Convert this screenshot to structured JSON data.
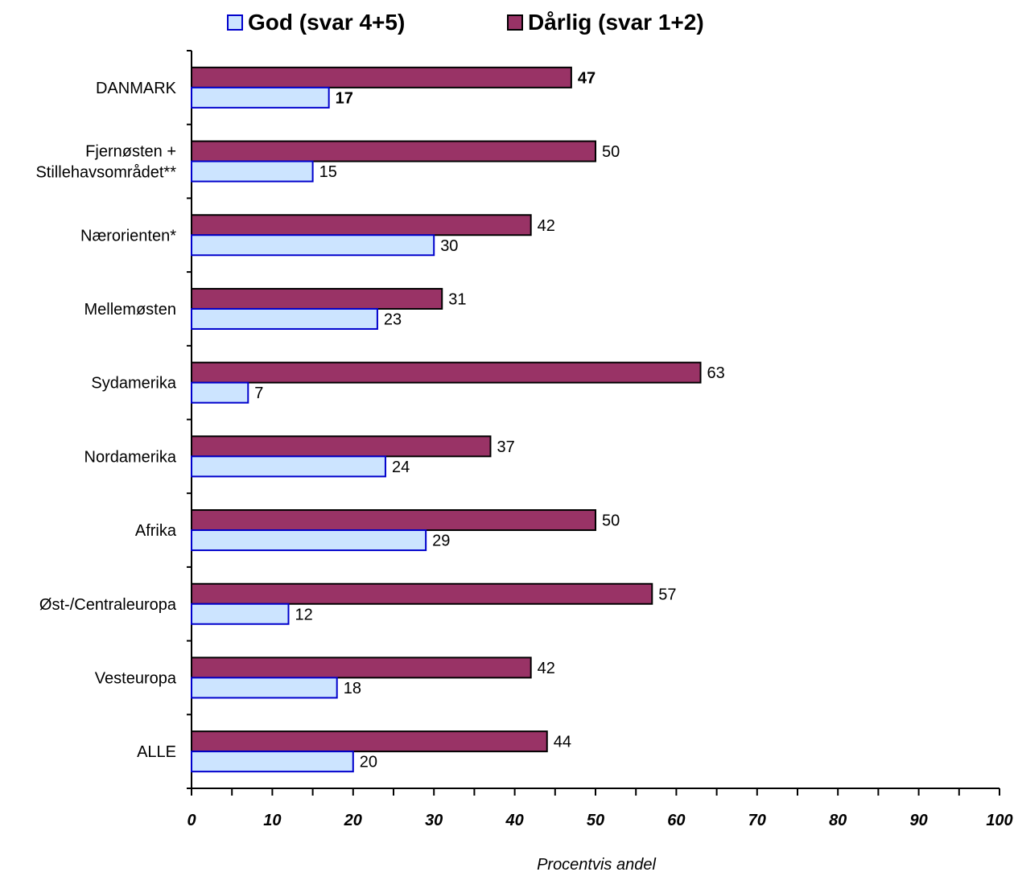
{
  "chart_data": {
    "type": "bar",
    "orientation": "horizontal",
    "categories": [
      "DANMARK",
      "Fjernøsten + Stillehavsområdet**",
      "Nærorienten*",
      "Mellemøsten",
      "Sydamerika",
      "Nordamerika",
      "Afrika",
      "Øst-/Centraleuropa",
      "Vesteuropa",
      "ALLE"
    ],
    "category_lines": [
      [
        "DANMARK"
      ],
      [
        "Fjernøsten +",
        "Stillehavsområdet**"
      ],
      [
        "Nærorienten*"
      ],
      [
        "Mellemøsten"
      ],
      [
        "Sydamerika"
      ],
      [
        "Nordamerika"
      ],
      [
        "Afrika"
      ],
      [
        "Øst-/Centraleuropa"
      ],
      [
        "Vesteuropa"
      ],
      [
        "ALLE"
      ]
    ],
    "series": [
      {
        "name": "Dårlig (svar 1+2)",
        "values": [
          47,
          50,
          42,
          31,
          63,
          37,
          50,
          57,
          42,
          44
        ],
        "color": "#993366",
        "edge": "#000000"
      },
      {
        "name": "God (svar 4+5)",
        "values": [
          17,
          15,
          30,
          23,
          7,
          24,
          29,
          12,
          18,
          20
        ],
        "color": "#cce4ff",
        "edge": "#0000cc"
      }
    ],
    "legend_order": [
      "God (svar 4+5)",
      "Dårlig (svar 1+2)"
    ],
    "legend_position": "top",
    "bold_category": "DANMARK",
    "xlim": [
      0,
      100
    ],
    "xticks": [
      0,
      10,
      20,
      30,
      40,
      50,
      60,
      70,
      80,
      90,
      100
    ],
    "xlabel": "Procentvis andel",
    "ylabel": "",
    "title": "",
    "grid": false
  }
}
